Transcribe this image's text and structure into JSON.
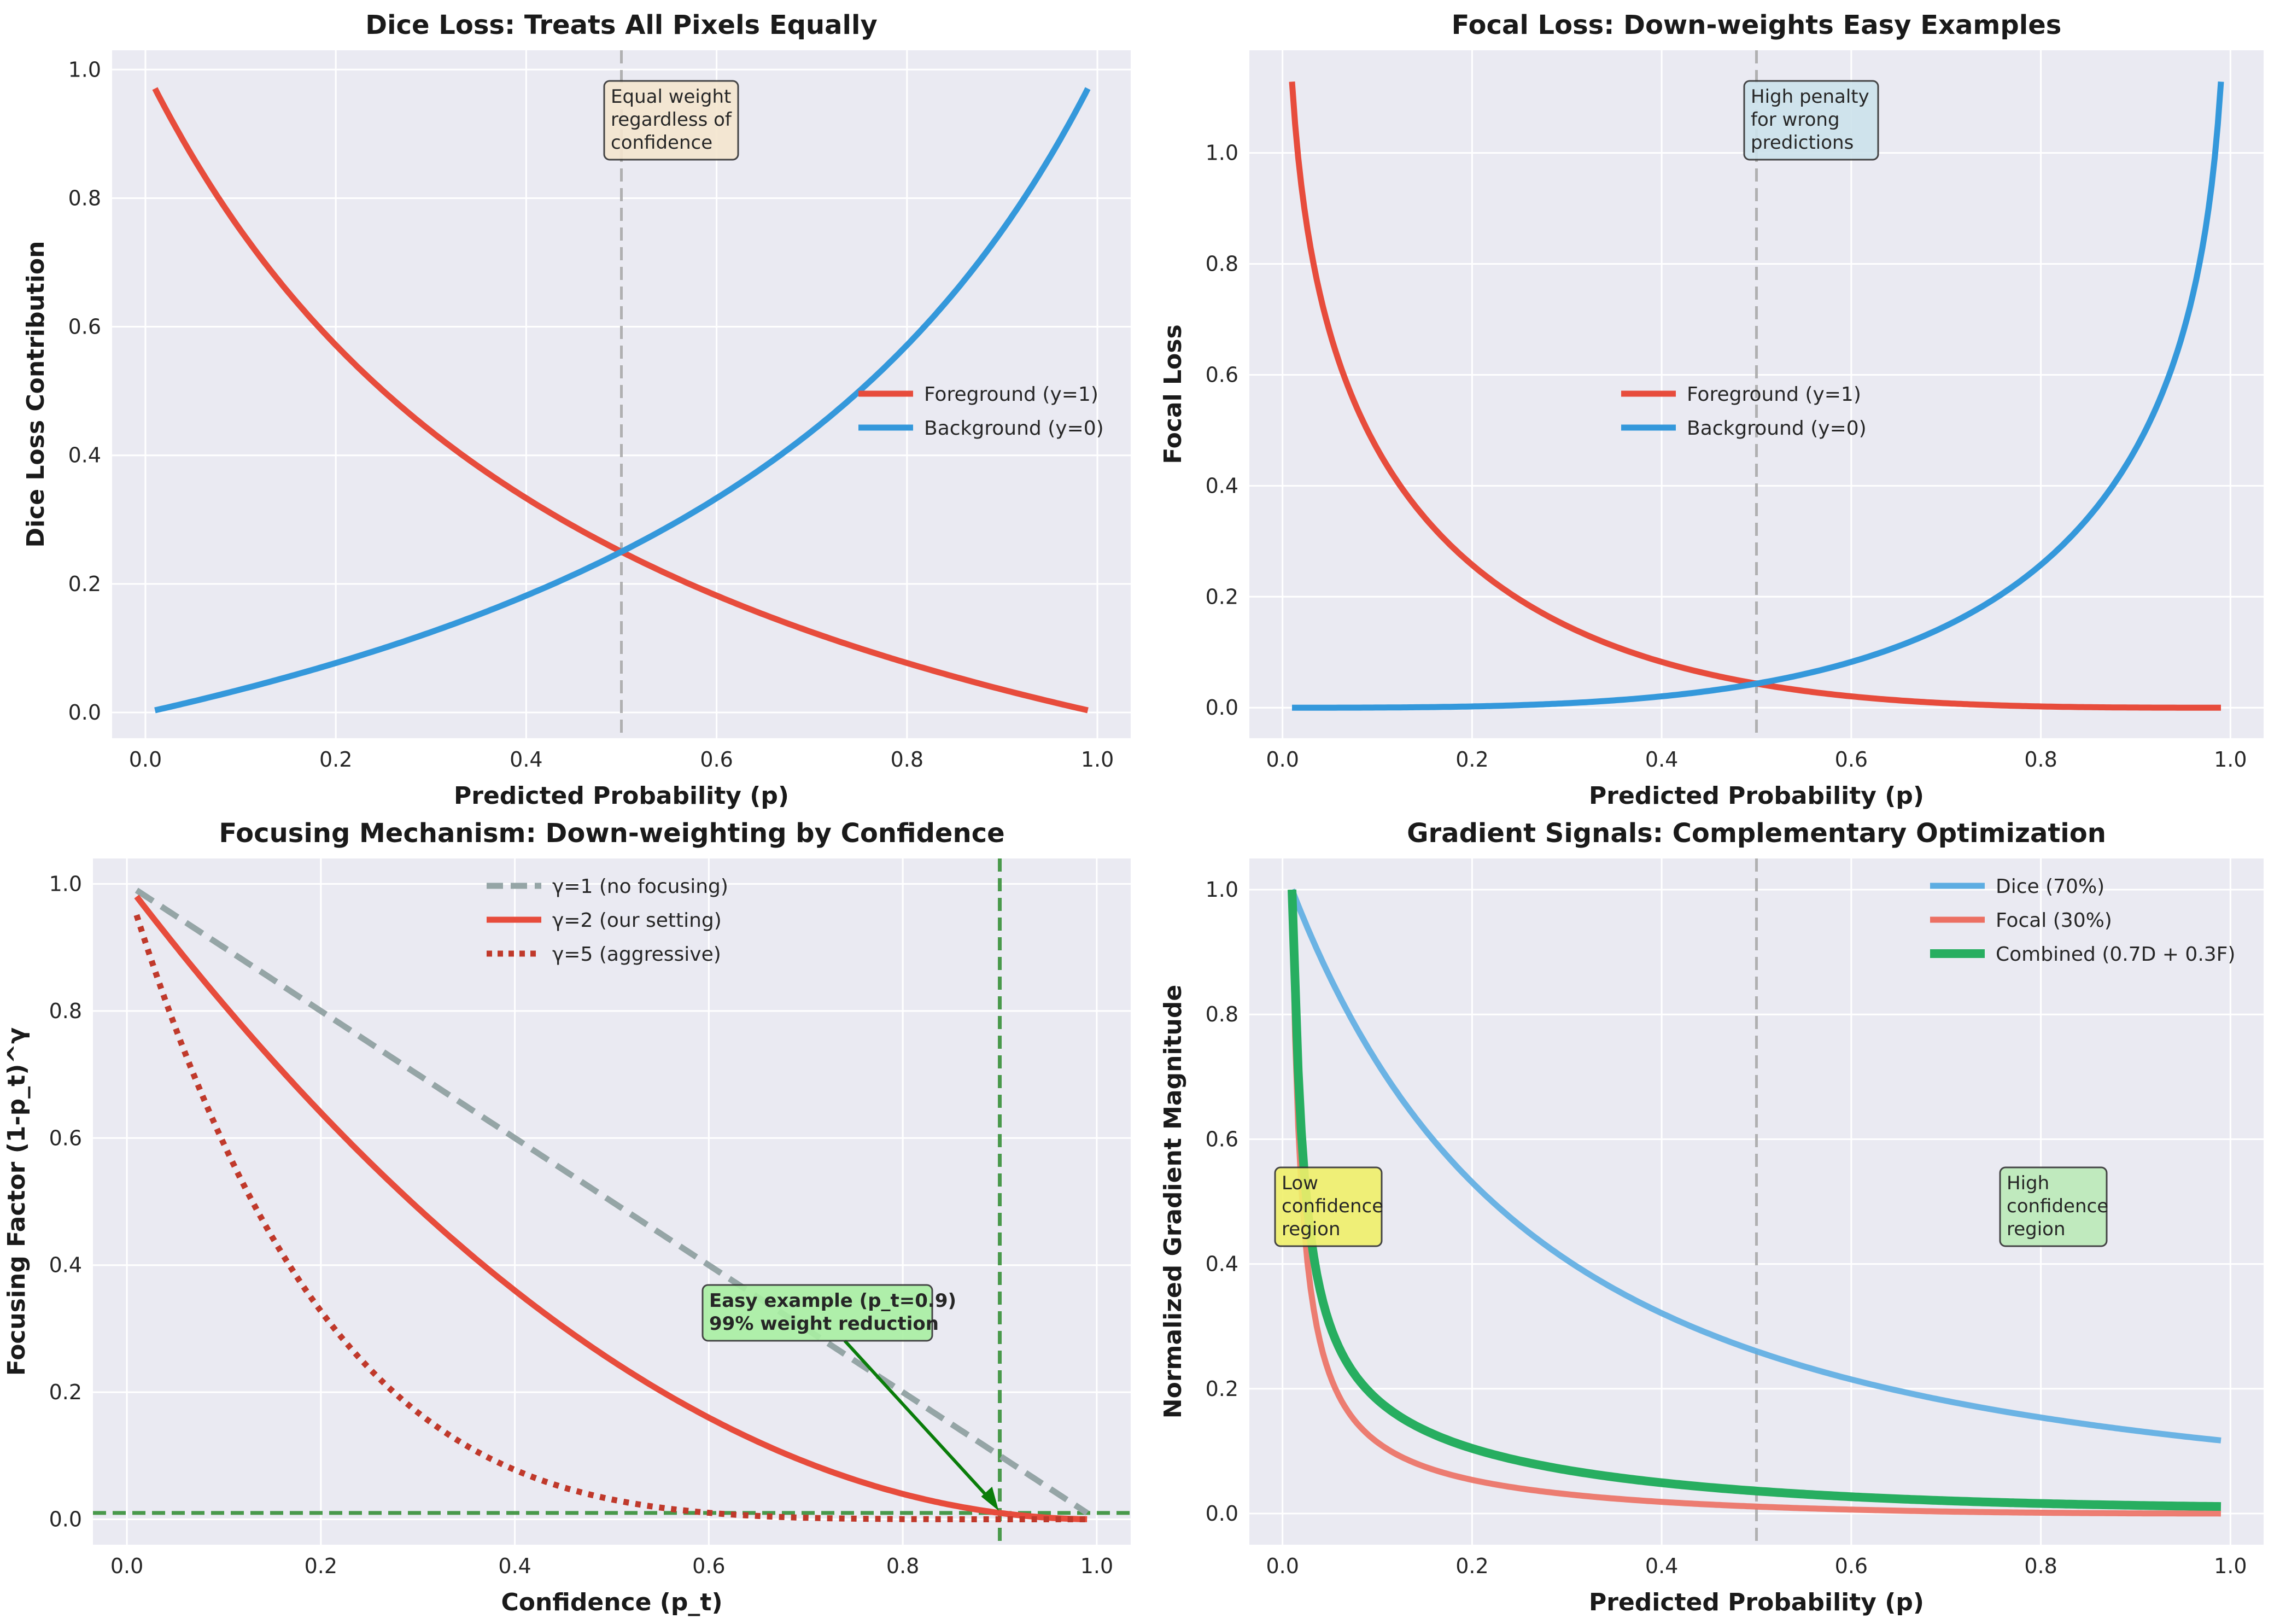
{
  "chart_data": [
    {
      "type": "line",
      "title": "Dice Loss: Treats All Pixels Equally",
      "xlabel": "Predicted Probability (p)",
      "ylabel": "Dice Loss Contribution",
      "xlim": [
        -0.035,
        1.035
      ],
      "ylim": [
        -0.04,
        1.03
      ],
      "xticks": [
        "0.0",
        "0.2",
        "0.4",
        "0.6",
        "0.8",
        "1.0"
      ],
      "yticks": [
        "0.0",
        "0.2",
        "0.4",
        "0.6",
        "0.8",
        "1.0"
      ],
      "grid": true,
      "legend_position": "center-right",
      "series": [
        {
          "name": "Foreground (y=1)",
          "color": "#e74c3c",
          "style": "solid",
          "x_range": [
            0.01,
            0.99
          ],
          "formula": "dice_fg",
          "y_start": 0.98,
          "y_end": 0.005
        },
        {
          "name": "Background (y=0)",
          "color": "#3498db",
          "style": "solid",
          "x_range": [
            0.01,
            0.99
          ],
          "formula": "dice_bg",
          "y_start": 0.005,
          "y_end": 0.98
        }
      ],
      "reference_lines": [
        {
          "orientation": "vertical",
          "value": 0.5,
          "color": "#aaaaaa",
          "style": "dashed"
        }
      ],
      "annotations": [
        {
          "lines": [
            "Equal weight",
            "regardless of",
            "confidence"
          ],
          "x": 0.5,
          "y": 0.97,
          "box_color": "#f5e6cf"
        }
      ]
    },
    {
      "type": "line",
      "title": "Focal Loss: Down-weights Easy Examples",
      "xlabel": "Predicted Probability (p)",
      "ylabel": "Focal Loss",
      "xlim": [
        -0.035,
        1.035
      ],
      "ylim": [
        -0.055,
        1.185
      ],
      "xticks": [
        "0.0",
        "0.2",
        "0.4",
        "0.6",
        "0.8",
        "1.0"
      ],
      "yticks": [
        "0.0",
        "0.2",
        "0.4",
        "0.6",
        "0.8",
        "1.0"
      ],
      "grid": true,
      "legend_position": "center",
      "series": [
        {
          "name": "Foreground (y=1)",
          "color": "#e74c3c",
          "style": "solid",
          "x_range": [
            0.01,
            0.99
          ],
          "formula": "focal_fg",
          "y_start": 1.13,
          "y_end": 0.0
        },
        {
          "name": "Background (y=0)",
          "color": "#3498db",
          "style": "solid",
          "x_range": [
            0.01,
            0.99
          ],
          "formula": "focal_bg",
          "y_start": 0.0,
          "y_end": 1.13
        }
      ],
      "reference_lines": [
        {
          "orientation": "vertical",
          "value": 0.5,
          "color": "#aaaaaa",
          "style": "dashed"
        }
      ],
      "annotations": [
        {
          "lines": [
            "High penalty",
            "for wrong",
            "predictions"
          ],
          "x": 0.5,
          "y": 1.1,
          "box_color": "#cde3ec"
        }
      ]
    },
    {
      "type": "line",
      "title": "Focusing Mechanism: Down-weighting by Confidence",
      "xlabel": "Confidence (p_t)",
      "ylabel": "Focusing Factor (1-p_t)^γ",
      "xlim": [
        -0.035,
        1.035
      ],
      "ylim": [
        -0.04,
        1.04
      ],
      "xticks": [
        "0.0",
        "0.2",
        "0.4",
        "0.6",
        "0.8",
        "1.0"
      ],
      "yticks": [
        "0.0",
        "0.2",
        "0.4",
        "0.6",
        "0.8",
        "1.0"
      ],
      "grid": true,
      "legend_position": "upper-center",
      "series": [
        {
          "name": "γ=1 (no focusing)",
          "color": "#95a5a6",
          "style": "dashed",
          "x_range": [
            0.01,
            0.99
          ],
          "formula": "gamma1",
          "y_start": 0.99,
          "y_end": 0.01
        },
        {
          "name": "γ=2 (our setting)",
          "color": "#e74c3c",
          "style": "solid",
          "x_range": [
            0.01,
            0.99
          ],
          "formula": "gamma2",
          "y_start": 0.98,
          "y_end": 0.0
        },
        {
          "name": "γ=5 (aggressive)",
          "color": "#c0392b",
          "style": "dotted",
          "x_range": [
            0.01,
            0.99
          ],
          "formula": "gamma5",
          "y_start": 0.95,
          "y_end": 0.0
        }
      ],
      "reference_lines": [
        {
          "orientation": "vertical",
          "value": 0.9,
          "color": "#2e8b2e",
          "style": "dashed"
        },
        {
          "orientation": "horizontal",
          "value": 0.01,
          "color": "#2e8b2e",
          "style": "dashed"
        }
      ],
      "annotations": [
        {
          "lines": [
            "Easy example (p_t=0.9)",
            "99% weight reduction"
          ],
          "x": 0.6,
          "y": 0.35,
          "arrow_to": [
            0.9,
            0.01
          ],
          "box_color": "#a9f0a3"
        }
      ]
    },
    {
      "type": "line",
      "title": "Gradient Signals: Complementary Optimization",
      "xlabel": "Predicted Probability (p)",
      "ylabel": "Normalized Gradient Magnitude",
      "xlim": [
        -0.035,
        1.035
      ],
      "ylim": [
        -0.05,
        1.05
      ],
      "xticks": [
        "0.0",
        "0.2",
        "0.4",
        "0.6",
        "0.8",
        "1.0"
      ],
      "yticks": [
        "0.0",
        "0.2",
        "0.4",
        "0.6",
        "0.8",
        "1.0"
      ],
      "grid": true,
      "legend_position": "top-right",
      "series": [
        {
          "name": "Dice (70%)",
          "color": "#5dade2",
          "style": "solid",
          "x_range": [
            0.01,
            0.99
          ],
          "formula": "grad_dice",
          "y_start": 1.0,
          "y_end": 0.13
        },
        {
          "name": "Focal (30%)",
          "color": "#ec7063",
          "style": "solid",
          "x_range": [
            0.01,
            0.99
          ],
          "formula": "grad_focal",
          "y_start": 1.0,
          "y_end": 0.0
        },
        {
          "name": "Combined (0.7D + 0.3F)",
          "color": "#27ae60",
          "style": "solid",
          "x_range": [
            0.01,
            0.99
          ],
          "formula": "grad_combined",
          "y_start": 1.0,
          "y_end": 0.01
        }
      ],
      "reference_lines": [
        {
          "orientation": "vertical",
          "value": 0.5,
          "color": "#aaaaaa",
          "style": "dashed"
        }
      ],
      "annotations": [
        {
          "lines": [
            "Low",
            "confidence",
            "region"
          ],
          "x": 0.01,
          "y": 0.52,
          "box_color": "#f0f06a"
        },
        {
          "lines": [
            "High",
            "confidence",
            "region"
          ],
          "x": 0.77,
          "y": 0.52,
          "box_color": "#bcebb9"
        }
      ]
    }
  ]
}
